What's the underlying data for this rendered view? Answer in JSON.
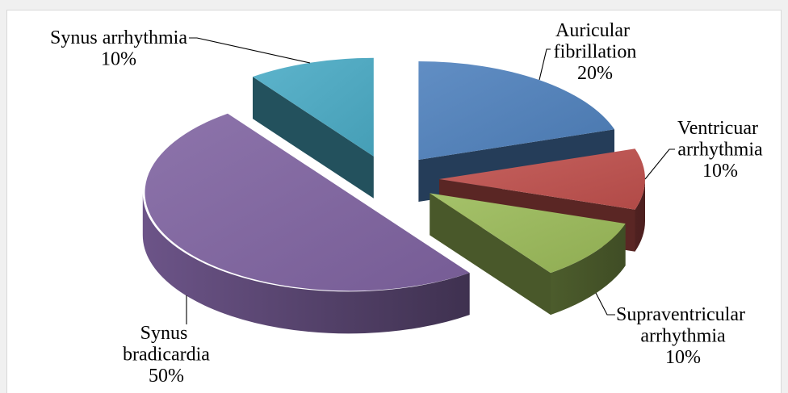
{
  "chart_data": {
    "type": "pie",
    "variant": "3D exploded",
    "direction": "clockwise",
    "legend": "none",
    "data_labels": "outside-with-leader-lines",
    "slices": [
      {
        "label": "Auricular fibrillation",
        "value": 20,
        "value_label": "20%",
        "color": "#4f81bd"
      },
      {
        "label": "Ventricuar arrhythmia",
        "value": 10,
        "value_label": "10%",
        "color": "#c0504d"
      },
      {
        "label": "Supraventricular arrhythmia",
        "value": 10,
        "value_label": "10%",
        "color": "#9bbb59"
      },
      {
        "label": "Synus bradicardia",
        "value": 50,
        "value_label": "50%",
        "color": "#8064a2"
      },
      {
        "label": "Synus arrhythmia",
        "value": 10,
        "value_label": "10%",
        "color": "#4bacc6"
      }
    ]
  }
}
